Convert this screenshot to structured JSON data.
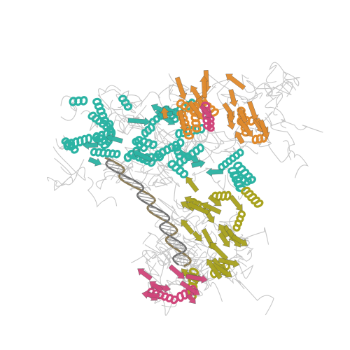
{
  "image": {
    "background": "#ffffff",
    "subject": "protein-nucleic-acid-complex-ribbon",
    "chains": [
      {
        "name": "cyan-domain",
        "color": "#2bb3a3"
      },
      {
        "name": "orange-domain",
        "color": "#e08a2c"
      },
      {
        "name": "olive-domain",
        "color": "#a8a21e"
      },
      {
        "name": "pink-domain",
        "color": "#d0457a"
      },
      {
        "name": "nucleic-acid-helix",
        "color": "#8a7a55"
      },
      {
        "name": "coil-trace",
        "color": "#b8b8b8"
      }
    ]
  }
}
